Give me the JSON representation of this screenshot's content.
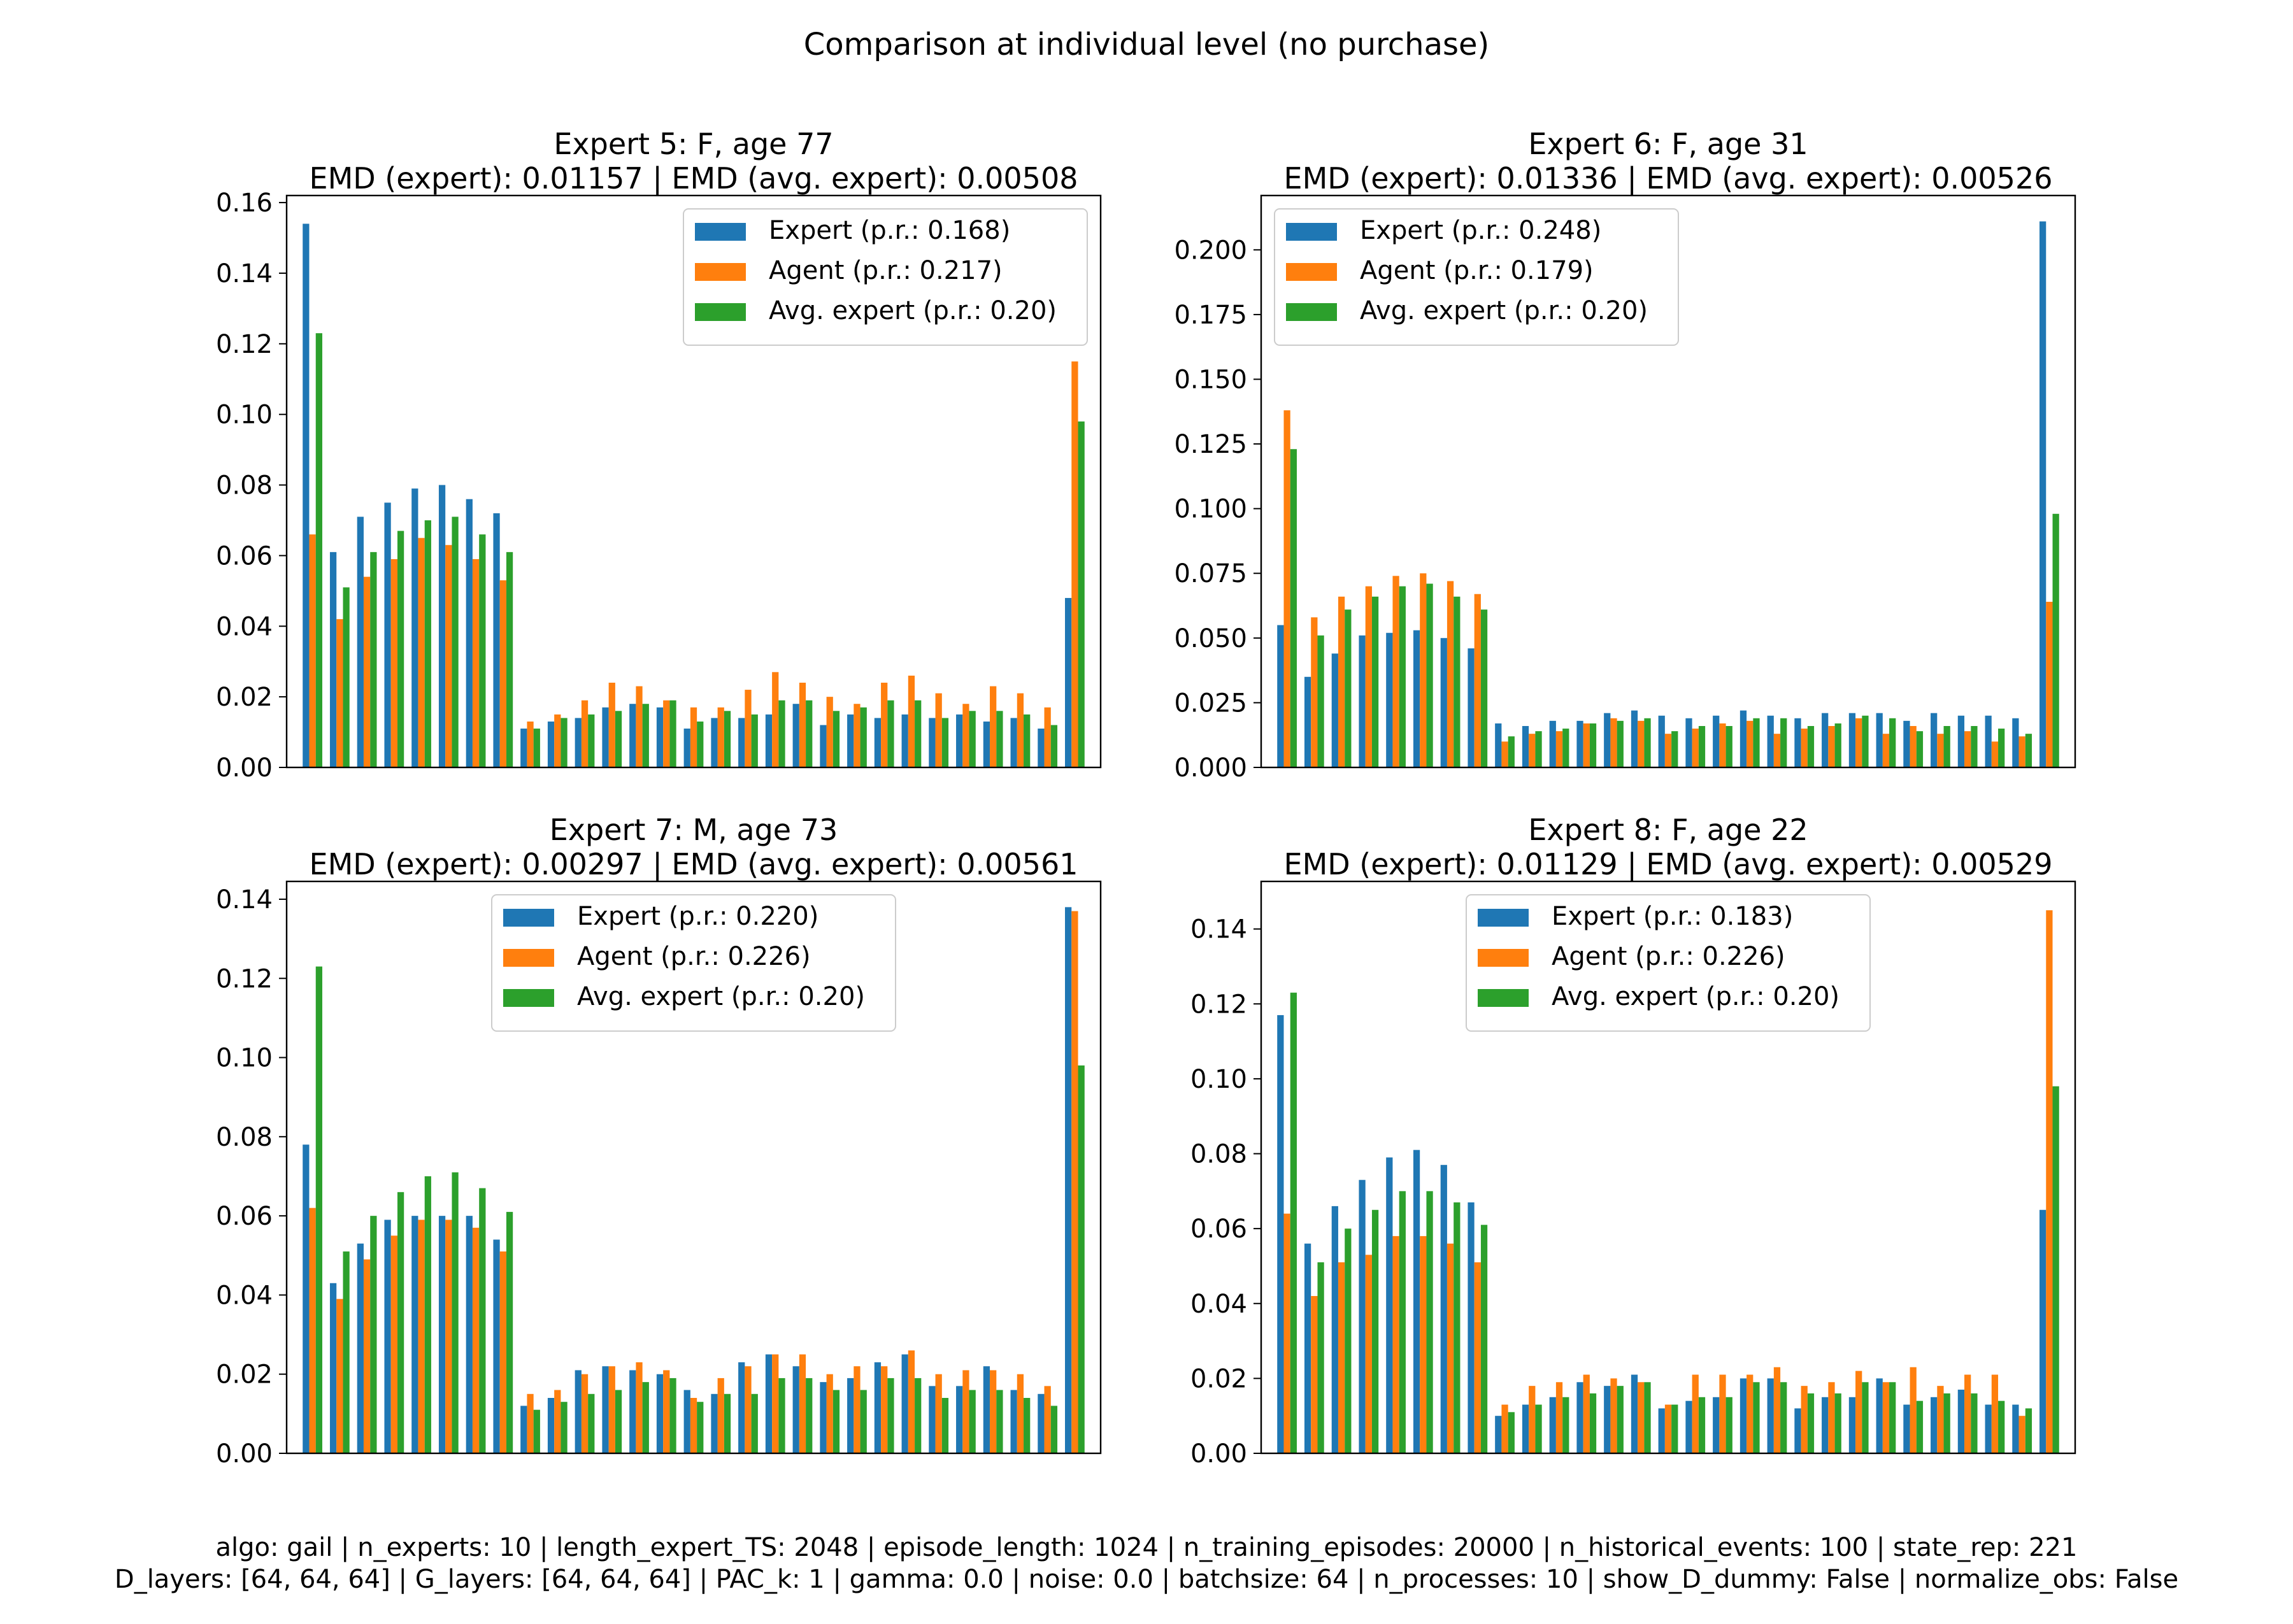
{
  "figure": {
    "suptitle": "Comparison at individual level (no purchase)",
    "footer": {
      "line1": "algo: gail | n_experts: 10 | length_expert_TS: 2048 | episode_length: 1024 | n_training_episodes: 20000 | n_historical_events: 100 | state_rep: 221",
      "line2": "D_layers: [64, 64, 64] | G_layers: [64, 64, 64] | PAC_k: 1 | gamma: 0.0 | noise: 0.0 | batchsize: 64 | n_processes: 10 | show_D_dummy: False | normalize_obs: False"
    },
    "colors": {
      "expert": "#1f77b4",
      "agent": "#ff7f0e",
      "avg_expert": "#2ca02c"
    }
  },
  "chart_data": [
    {
      "type": "bar",
      "title": "Expert 5: F, age 77",
      "subtitle": "EMD (expert): 0.01157 | EMD (avg. expert): 0.00508",
      "legend_position": "top-right",
      "ylim": [
        0,
        0.162
      ],
      "yticks": [
        "0.00",
        "0.02",
        "0.04",
        "0.06",
        "0.08",
        "0.10",
        "0.12",
        "0.14",
        "0.16"
      ],
      "ytick_values": [
        0,
        0.02,
        0.04,
        0.06,
        0.08,
        0.1,
        0.12,
        0.14,
        0.16
      ],
      "series": [
        {
          "name": "Expert (p.r.: 0.168)",
          "values": [
            0.154,
            0.061,
            0.071,
            0.075,
            0.079,
            0.08,
            0.076,
            0.072,
            0.011,
            0.013,
            0.014,
            0.017,
            0.018,
            0.017,
            0.011,
            0.014,
            0.014,
            0.015,
            0.018,
            0.012,
            0.015,
            0.014,
            0.015,
            0.014,
            0.015,
            0.013,
            0.014,
            0.011,
            0.048
          ]
        },
        {
          "name": "Agent (p.r.: 0.217)",
          "values": [
            0.066,
            0.042,
            0.054,
            0.059,
            0.065,
            0.063,
            0.059,
            0.053,
            0.013,
            0.015,
            0.019,
            0.024,
            0.023,
            0.019,
            0.017,
            0.017,
            0.022,
            0.027,
            0.024,
            0.02,
            0.018,
            0.024,
            0.026,
            0.021,
            0.018,
            0.023,
            0.021,
            0.017,
            0.115
          ]
        },
        {
          "name": "Avg. expert (p.r.: 0.20)",
          "values": [
            0.123,
            0.051,
            0.061,
            0.067,
            0.07,
            0.071,
            0.066,
            0.061,
            0.011,
            0.014,
            0.015,
            0.016,
            0.018,
            0.019,
            0.013,
            0.016,
            0.015,
            0.019,
            0.019,
            0.016,
            0.017,
            0.019,
            0.019,
            0.014,
            0.016,
            0.016,
            0.015,
            0.012,
            0.098
          ]
        }
      ]
    },
    {
      "type": "bar",
      "title": "Expert 6: F, age 31",
      "subtitle": "EMD (expert): 0.01336 | EMD (avg. expert): 0.00526",
      "legend_position": "top-left",
      "ylim": [
        0,
        0.221
      ],
      "yticks": [
        "0.000",
        "0.025",
        "0.050",
        "0.075",
        "0.100",
        "0.125",
        "0.150",
        "0.175",
        "0.200"
      ],
      "ytick_values": [
        0,
        0.025,
        0.05,
        0.075,
        0.1,
        0.125,
        0.15,
        0.175,
        0.2
      ],
      "series": [
        {
          "name": "Expert (p.r.: 0.248)",
          "values": [
            0.055,
            0.035,
            0.044,
            0.051,
            0.052,
            0.053,
            0.05,
            0.046,
            0.017,
            0.016,
            0.018,
            0.018,
            0.021,
            0.022,
            0.02,
            0.019,
            0.02,
            0.022,
            0.02,
            0.019,
            0.021,
            0.021,
            0.021,
            0.018,
            0.021,
            0.02,
            0.02,
            0.019,
            0.211
          ]
        },
        {
          "name": "Agent (p.r.: 0.179)",
          "values": [
            0.138,
            0.058,
            0.066,
            0.07,
            0.074,
            0.075,
            0.072,
            0.067,
            0.01,
            0.013,
            0.014,
            0.017,
            0.019,
            0.018,
            0.013,
            0.015,
            0.017,
            0.018,
            0.013,
            0.015,
            0.016,
            0.019,
            0.013,
            0.016,
            0.013,
            0.014,
            0.01,
            0.012,
            0.064
          ]
        },
        {
          "name": "Avg. expert (p.r.: 0.20)",
          "values": [
            0.123,
            0.051,
            0.061,
            0.066,
            0.07,
            0.071,
            0.066,
            0.061,
            0.012,
            0.014,
            0.015,
            0.017,
            0.018,
            0.019,
            0.014,
            0.016,
            0.016,
            0.019,
            0.019,
            0.016,
            0.017,
            0.02,
            0.019,
            0.014,
            0.016,
            0.016,
            0.015,
            0.013,
            0.098
          ]
        }
      ]
    },
    {
      "type": "bar",
      "title": "Expert 7: M, age 73",
      "subtitle": "EMD (expert): 0.00297 | EMD (avg. expert): 0.00561",
      "legend_position": "top-center",
      "ylim": [
        0,
        0.1445
      ],
      "yticks": [
        "0.00",
        "0.02",
        "0.04",
        "0.06",
        "0.08",
        "0.10",
        "0.12",
        "0.14"
      ],
      "ytick_values": [
        0,
        0.02,
        0.04,
        0.06,
        0.08,
        0.1,
        0.12,
        0.14
      ],
      "series": [
        {
          "name": "Expert (p.r.: 0.220)",
          "values": [
            0.078,
            0.043,
            0.053,
            0.059,
            0.06,
            0.06,
            0.06,
            0.054,
            0.012,
            0.014,
            0.021,
            0.022,
            0.021,
            0.02,
            0.016,
            0.015,
            0.023,
            0.025,
            0.022,
            0.018,
            0.019,
            0.023,
            0.025,
            0.017,
            0.017,
            0.022,
            0.016,
            0.015,
            0.138
          ]
        },
        {
          "name": "Agent (p.r.: 0.226)",
          "values": [
            0.062,
            0.039,
            0.049,
            0.055,
            0.059,
            0.059,
            0.057,
            0.051,
            0.015,
            0.016,
            0.02,
            0.022,
            0.023,
            0.021,
            0.014,
            0.019,
            0.022,
            0.025,
            0.025,
            0.02,
            0.022,
            0.022,
            0.026,
            0.02,
            0.021,
            0.021,
            0.02,
            0.017,
            0.137
          ]
        },
        {
          "name": "Avg. expert (p.r.: 0.20)",
          "values": [
            0.123,
            0.051,
            0.06,
            0.066,
            0.07,
            0.071,
            0.067,
            0.061,
            0.011,
            0.013,
            0.015,
            0.016,
            0.018,
            0.019,
            0.013,
            0.015,
            0.015,
            0.019,
            0.019,
            0.016,
            0.016,
            0.019,
            0.019,
            0.014,
            0.016,
            0.016,
            0.014,
            0.012,
            0.098
          ]
        }
      ]
    },
    {
      "type": "bar",
      "title": "Expert 8: F, age 22",
      "subtitle": "EMD (expert): 0.01129 | EMD (avg. expert): 0.00529",
      "legend_position": "top-center",
      "ylim": [
        0,
        0.1527
      ],
      "yticks": [
        "0.00",
        "0.02",
        "0.04",
        "0.06",
        "0.08",
        "0.10",
        "0.12",
        "0.14"
      ],
      "ytick_values": [
        0,
        0.02,
        0.04,
        0.06,
        0.08,
        0.1,
        0.12,
        0.14
      ],
      "series": [
        {
          "name": "Expert (p.r.: 0.183)",
          "values": [
            0.117,
            0.056,
            0.066,
            0.073,
            0.079,
            0.081,
            0.077,
            0.067,
            0.01,
            0.013,
            0.015,
            0.019,
            0.018,
            0.021,
            0.012,
            0.014,
            0.015,
            0.02,
            0.02,
            0.012,
            0.015,
            0.015,
            0.02,
            0.013,
            0.015,
            0.017,
            0.013,
            0.013,
            0.065
          ]
        },
        {
          "name": "Agent (p.r.: 0.226)",
          "values": [
            0.064,
            0.042,
            0.051,
            0.053,
            0.058,
            0.058,
            0.056,
            0.051,
            0.013,
            0.018,
            0.019,
            0.021,
            0.02,
            0.019,
            0.013,
            0.021,
            0.021,
            0.021,
            0.023,
            0.018,
            0.019,
            0.022,
            0.019,
            0.023,
            0.018,
            0.021,
            0.021,
            0.01,
            0.145
          ]
        },
        {
          "name": "Avg. expert (p.r.: 0.20)",
          "values": [
            0.123,
            0.051,
            0.06,
            0.065,
            0.07,
            0.07,
            0.067,
            0.061,
            0.011,
            0.013,
            0.015,
            0.016,
            0.018,
            0.019,
            0.013,
            0.015,
            0.015,
            0.019,
            0.019,
            0.016,
            0.016,
            0.019,
            0.019,
            0.014,
            0.016,
            0.016,
            0.014,
            0.012,
            0.098
          ]
        }
      ]
    }
  ]
}
